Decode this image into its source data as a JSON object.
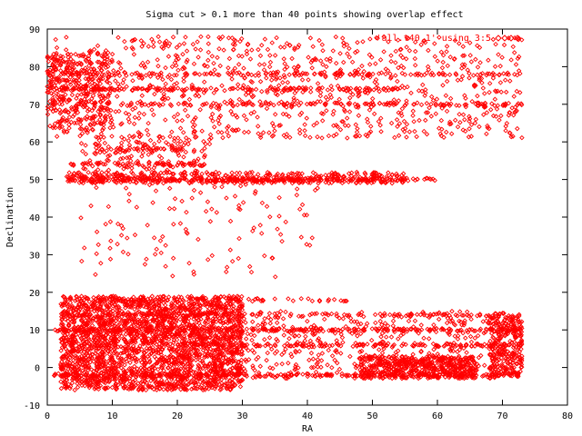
{
  "chart_data": {
    "type": "scatter",
    "title": "Sigma cut > 0.1 more than 40 points showing overlap effect",
    "xlabel": "RA",
    "ylabel": "Declination",
    "xlim": [
      0,
      80
    ],
    "ylim": [
      -10,
      90
    ],
    "x_ticks": [
      0,
      10,
      20,
      30,
      40,
      50,
      60,
      70,
      80
    ],
    "y_ticks": [
      -10,
      0,
      10,
      20,
      30,
      40,
      50,
      60,
      70,
      80,
      90
    ],
    "grid": false,
    "legend_position": "top-right",
    "series": [
      {
        "name": "'all.t40.1' using 3:5",
        "color": "#ff0000",
        "marker": "diamond",
        "clusters": [
          {
            "x_range": [
              0,
              73
            ],
            "y_range": [
              61,
              88
            ],
            "count": 900
          },
          {
            "x_range": [
              0,
              10
            ],
            "y_range": [
              63,
              84
            ],
            "count": 350
          },
          {
            "x_range": [
              3,
              55
            ],
            "y_range": [
              49,
              52
            ],
            "count": 420
          },
          {
            "x_range": [
              5,
              25
            ],
            "y_range": [
              52,
              62
            ],
            "count": 140
          },
          {
            "x_range": [
              5,
              42
            ],
            "y_range": [
              24,
              49
            ],
            "count": 120
          },
          {
            "x_range": [
              2,
              30
            ],
            "y_range": [
              -6,
              19
            ],
            "count": 2600
          },
          {
            "x_range": [
              29,
              73
            ],
            "y_range": [
              -3,
              15
            ],
            "count": 480
          },
          {
            "x_range": [
              48,
              66
            ],
            "y_range": [
              -3,
              3
            ],
            "count": 520
          },
          {
            "x_range": [
              68,
              73
            ],
            "y_range": [
              -2,
              14
            ],
            "count": 260
          }
        ],
        "row_bands": [
          {
            "y": 50,
            "x_range": [
              3,
              60
            ],
            "count": 240
          },
          {
            "y": 10,
            "x_range": [
              1,
              73
            ],
            "count": 260
          },
          {
            "y": -2,
            "x_range": [
              1,
              73
            ],
            "count": 200
          },
          {
            "y": 6,
            "x_range": [
              20,
              73
            ],
            "count": 140
          },
          {
            "y": 14,
            "x_range": [
              2,
              73
            ],
            "count": 120
          },
          {
            "y": 54,
            "x_range": [
              3,
              25
            ],
            "count": 60
          },
          {
            "y": 58,
            "x_range": [
              8,
              22
            ],
            "count": 40
          },
          {
            "y": 70,
            "x_range": [
              5,
              73
            ],
            "count": 140
          },
          {
            "y": 74,
            "x_range": [
              0,
              55
            ],
            "count": 160
          },
          {
            "y": 78,
            "x_range": [
              0,
              73
            ],
            "count": 140
          },
          {
            "y": 18,
            "x_range": [
              3,
              47
            ],
            "count": 70
          }
        ]
      }
    ]
  }
}
